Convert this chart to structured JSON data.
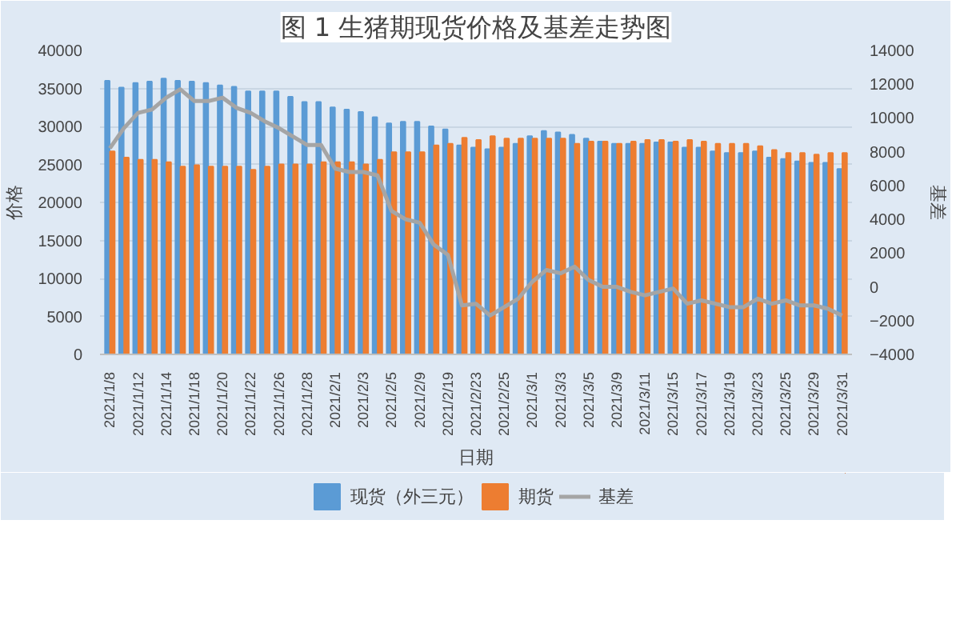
{
  "chart_data": {
    "type": "bar",
    "title": "图 1 生猪期现货价格及基差走势图",
    "xlabel": "日期",
    "ylabel": "价格",
    "y2label": "基差",
    "categories": [
      "2021/1/8",
      null,
      "2021/1/12",
      null,
      "2021/1/14",
      null,
      "2021/1/18",
      null,
      "2021/1/20",
      null,
      "2021/1/22",
      null,
      "2021/1/26",
      null,
      "2021/1/28",
      null,
      "2021/2/1",
      null,
      "2021/2/3",
      null,
      "2021/2/5",
      null,
      "2021/2/9",
      null,
      "2021/2/19",
      null,
      "2021/2/23",
      null,
      "2021/2/25",
      null,
      "2021/3/1",
      null,
      "2021/3/3",
      null,
      "2021/3/5",
      null,
      "2021/3/9",
      null,
      "2021/3/11",
      null,
      "2021/3/15",
      null,
      "2021/3/17",
      null,
      "2021/3/19",
      null,
      "2021/3/23",
      null,
      "2021/3/25",
      null,
      "2021/3/29",
      null,
      "2021/3/31"
    ],
    "series": [
      {
        "name": "现货（外三元）",
        "color": "#5b9bd5",
        "values": [
          36000,
          35100,
          35700,
          35900,
          36300,
          36000,
          35900,
          35700,
          35400,
          35200,
          34600,
          34600,
          34600,
          33900,
          33200,
          33200,
          32500,
          32200,
          31900,
          31200,
          30400,
          30600,
          30600,
          30000,
          29600,
          27500,
          27200,
          27000,
          27200,
          27700,
          28700,
          29400,
          29200,
          28900,
          28400,
          28000,
          27700,
          27700,
          27700,
          27900,
          27900,
          27200,
          27200,
          26700,
          26500,
          26500,
          26700,
          25900,
          25700,
          25400,
          25200,
          25200,
          24400
        ]
      },
      {
        "name": "期货",
        "color": "#ed7d31",
        "values": [
          26700,
          25900,
          25600,
          25600,
          25300,
          24700,
          24900,
          24700,
          24700,
          24700,
          24300,
          24700,
          25000,
          25000,
          25000,
          25300,
          25300,
          25300,
          25000,
          25600,
          26600,
          26600,
          26600,
          27500,
          27700,
          28500,
          28200,
          28700,
          28400,
          28400,
          28400,
          28400,
          28400,
          27700,
          28000,
          28000,
          27700,
          28000,
          28200,
          28200,
          28000,
          28200,
          28000,
          27700,
          27700,
          27700,
          27400,
          26900,
          26500,
          26500,
          26300,
          26500,
          26500
        ]
      },
      {
        "name": "基差",
        "type": "line",
        "axis": "y2",
        "color": "#a5a5a5",
        "values": [
          8200,
          9400,
          10300,
          10500,
          11200,
          11700,
          11000,
          11000,
          11200,
          10600,
          10300,
          9800,
          9400,
          8900,
          8400,
          8400,
          7000,
          6800,
          6800,
          6600,
          4500,
          4000,
          3800,
          2500,
          1900,
          -1100,
          -1000,
          -1700,
          -1200,
          -700,
          300,
          1000,
          800,
          1200,
          400,
          0,
          0,
          -300,
          -500,
          -300,
          -100,
          -1000,
          -800,
          -1000,
          -1200,
          -1200,
          -700,
          -1000,
          -800,
          -1100,
          -1100,
          -1300,
          -1700
        ]
      }
    ],
    "ylim": [
      0,
      40000
    ],
    "yticks": [
      0,
      5000,
      10000,
      15000,
      20000,
      25000,
      30000,
      35000,
      40000
    ],
    "y2lim": [
      -4000,
      14000
    ],
    "y2ticks": [
      -4000,
      -2000,
      0,
      2000,
      4000,
      6000,
      8000,
      10000,
      12000,
      14000
    ],
    "grid": "y",
    "legend": "bottom"
  }
}
